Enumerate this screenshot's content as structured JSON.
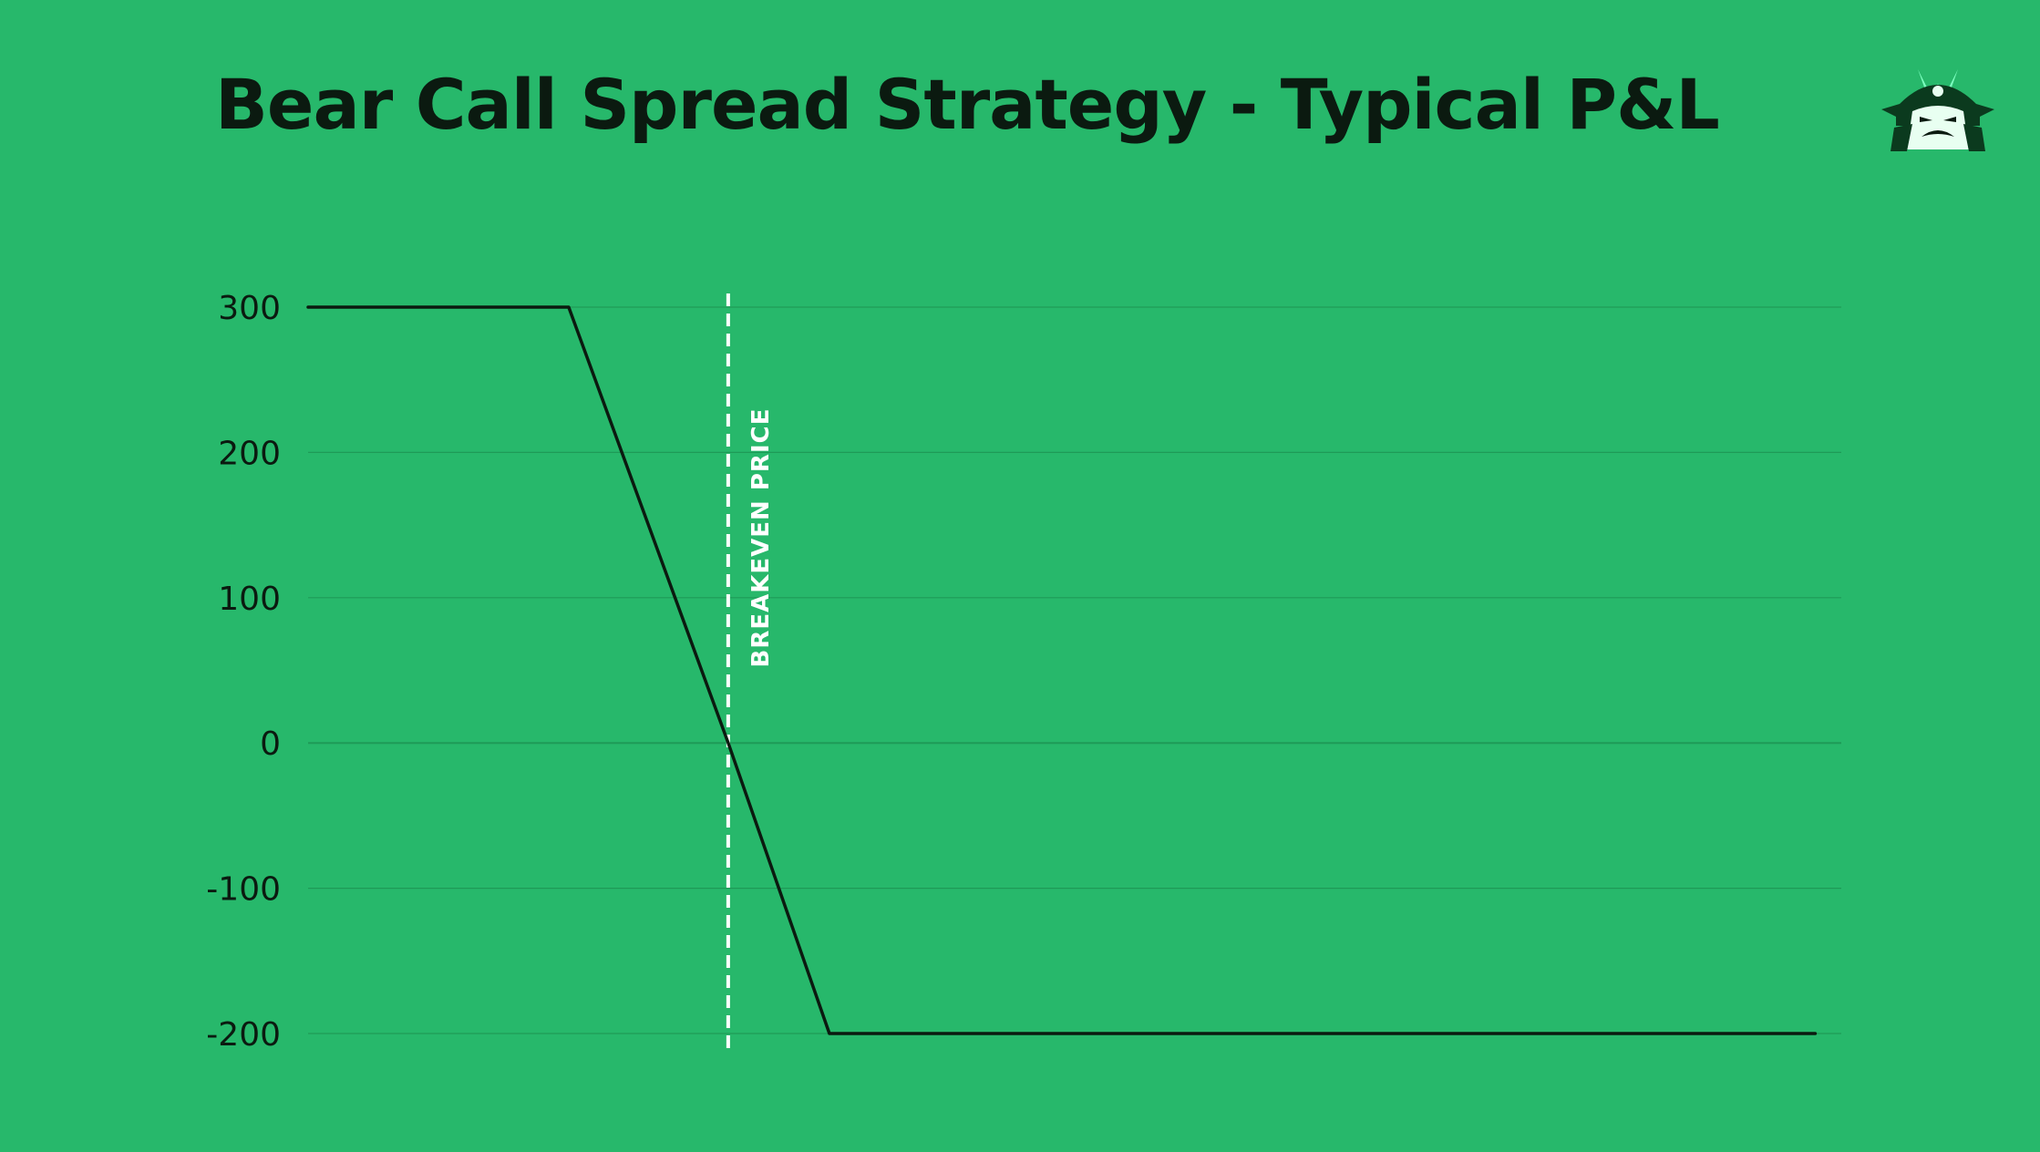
{
  "title": "Bear Call Spread Strategy - Typical P&L",
  "logo": {
    "icon": "samurai-mascot-icon"
  },
  "colors": {
    "background": "#27b86b",
    "line": "#0b1a10",
    "grid": "#1f9a57",
    "breakeven": "#ffffff"
  },
  "chart_data": {
    "type": "line",
    "title": "Bear Call Spread Strategy - Typical P&L",
    "xlabel": "",
    "ylabel": "",
    "xlim": [
      0,
      100
    ],
    "ylim": [
      -200,
      300
    ],
    "yticks": [
      300,
      200,
      100,
      0,
      -100,
      -200
    ],
    "ytick_labels": [
      "300",
      "200",
      "100",
      "0",
      "-100",
      "-200"
    ],
    "grid": true,
    "legend": "none",
    "series": [
      {
        "x": [
          0,
          17,
          27.4,
          34,
          98.3
        ],
        "y": [
          300,
          300,
          0,
          -200,
          -200
        ]
      }
    ],
    "annotations": [
      {
        "type": "vline",
        "x": 27.4,
        "style": "dashed",
        "label": "BREAKEVEN PRICE"
      }
    ]
  }
}
